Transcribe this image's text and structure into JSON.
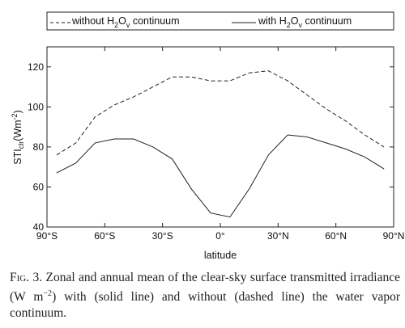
{
  "chart_data": {
    "type": "line",
    "x": [
      -85,
      -75,
      -65,
      -55,
      -45,
      -35,
      -25,
      -15,
      -5,
      5,
      15,
      25,
      35,
      45,
      55,
      65,
      75,
      85
    ],
    "series": [
      {
        "name": "without H₂Oᵥ continuum",
        "style": "dashed",
        "values": [
          76,
          82,
          95,
          101,
          105,
          110,
          115,
          115,
          113,
          113,
          117,
          118,
          113,
          106,
          99,
          93,
          86,
          80
        ]
      },
      {
        "name": "with H₂Oᵥ continuum",
        "style": "solid",
        "values": [
          67,
          72,
          82,
          84,
          84,
          80,
          74,
          59,
          47,
          45,
          59,
          76,
          86,
          85,
          82,
          79,
          75,
          69
        ]
      }
    ],
    "xlabel": "latitude",
    "ylabel_main": "STI",
    "ylabel_sub": "clr",
    "ylabel_units": "(Wm",
    "ylabel_exp": "-2",
    "ylabel_close": ")",
    "xlim": [
      -90,
      90
    ],
    "ylim": [
      40,
      130
    ],
    "yticks": [
      40,
      60,
      80,
      100,
      120
    ],
    "xticks": [
      {
        "value": -90,
        "label": "90°S"
      },
      {
        "value": -60,
        "label": "60°S"
      },
      {
        "value": -30,
        "label": "30°S"
      },
      {
        "value": 0,
        "label": "0°"
      },
      {
        "value": 30,
        "label": "30°N"
      },
      {
        "value": 60,
        "label": "60°N"
      },
      {
        "value": 90,
        "label": "90°N"
      }
    ],
    "legend_position": "top",
    "grid": false
  },
  "legend": {
    "dashed": {
      "pre": "without H",
      "sub1": "2",
      "mid": "O",
      "sub2": "v",
      "post": " continuum"
    },
    "solid": {
      "pre": "with H",
      "sub1": "2",
      "mid": "O",
      "sub2": "v",
      "post": " continuum"
    }
  },
  "caption": {
    "label": "Fig. 3.",
    "text_1": " Zonal and annual mean of the clear-sky surface transmitted irradiance (W m",
    "exp": "−2",
    "text_2": ") with (solid line) and without (dashed line) the water vapor continuum."
  }
}
